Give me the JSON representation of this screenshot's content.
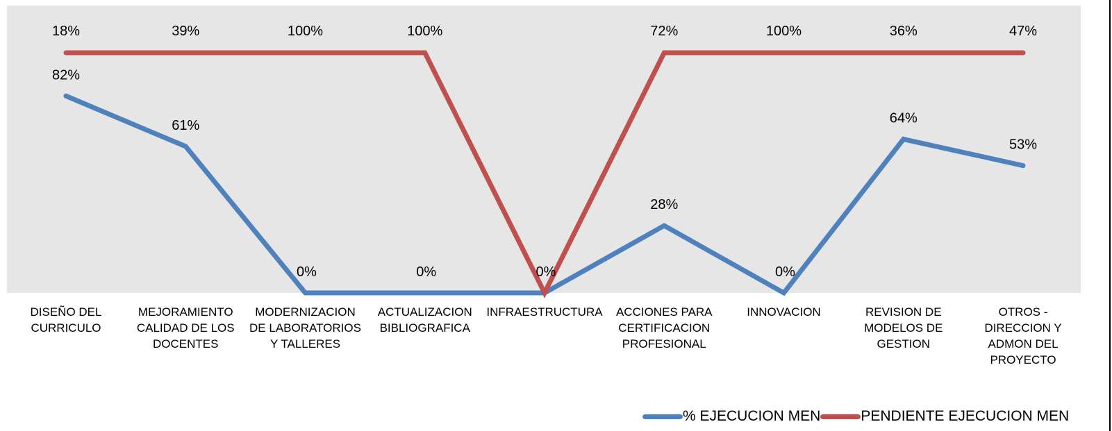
{
  "chart_data": {
    "type": "line",
    "categories": [
      [
        "DISEÑO DEL",
        "CURRICULO"
      ],
      [
        "MEJORAMIENTO",
        "CALIDAD DE LOS",
        "DOCENTES"
      ],
      [
        "MODERNIZACION",
        "DE LABORATORIOS",
        "Y TALLERES"
      ],
      [
        "ACTUALIZACION",
        "BIBLIOGRAFICA"
      ],
      [
        "INFRAESTRUCTURA"
      ],
      [
        "ACCIONES PARA",
        "CERTIFICACION",
        "PROFESIONAL"
      ],
      [
        "INNOVACION"
      ],
      [
        "REVISION DE",
        "MODELOS DE",
        "GESTION"
      ],
      [
        "OTROS -",
        "DIRECCION Y",
        "ADMON DEL",
        "PROYECTO"
      ]
    ],
    "series": [
      {
        "name": "% EJECUCION MEN",
        "color": "#4f81bd",
        "values": [
          82,
          61,
          0,
          0,
          0,
          28,
          0,
          64,
          53
        ],
        "labels": [
          "82%",
          "61%",
          "0%",
          "0%",
          "0%",
          "28%",
          "0%",
          "64%",
          "53%"
        ]
      },
      {
        "name": "PENDIENTE EJECUCION MEN",
        "color": "#c0504d",
        "values": [
          100,
          100,
          100,
          100,
          0,
          100,
          100,
          100,
          100
        ],
        "labels": [
          "18%",
          "39%",
          "100%",
          "100%",
          "",
          "72%",
          "100%",
          "36%",
          "47%"
        ]
      }
    ],
    "ylim": [
      0,
      100
    ],
    "grid": false,
    "legend_position": "bottom-right"
  }
}
